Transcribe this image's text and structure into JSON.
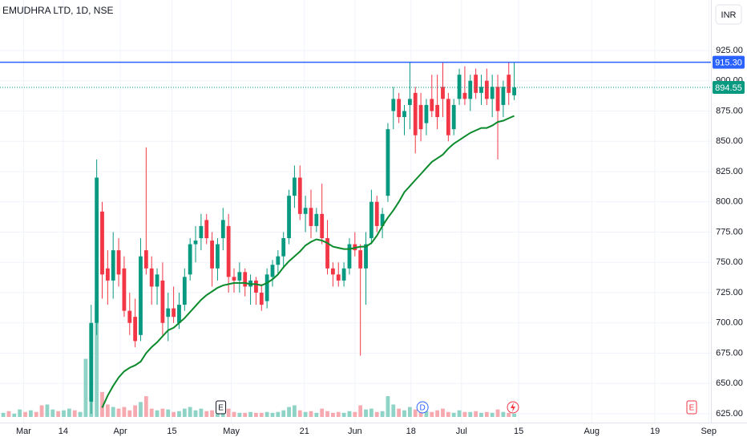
{
  "chart_data": {
    "type": "candlestick",
    "title": "EMUDHRA LTD, 1D, NSE",
    "currency": "INR",
    "up_color": "#089981",
    "down_color": "#f23645",
    "xlim": [
      -16.6,
      112.8
    ],
    "ylim": [
      617.7,
      966.7
    ],
    "xticks": [
      {
        "value": -12.3,
        "label": "Mar"
      },
      {
        "value": -5.1,
        "label": "14"
      },
      {
        "value": 5.3,
        "label": "Apr"
      },
      {
        "value": 14.7,
        "label": "15"
      },
      {
        "value": 25.5,
        "label": "May"
      },
      {
        "value": 38.8,
        "label": "21"
      },
      {
        "value": 48.0,
        "label": "Jun"
      },
      {
        "value": 58.2,
        "label": "18"
      },
      {
        "value": 67.4,
        "label": "Jul"
      },
      {
        "value": 77.8,
        "label": "15"
      },
      {
        "value": 91.1,
        "label": "Aug"
      },
      {
        "value": 102.6,
        "label": "19"
      },
      {
        "value": 112.4,
        "label": "Sep"
      }
    ],
    "yticks": [
      {
        "value": 625,
        "label": "625.00"
      },
      {
        "value": 650,
        "label": "650.00"
      },
      {
        "value": 675,
        "label": "675.00"
      },
      {
        "value": 700,
        "label": "700.00"
      },
      {
        "value": 725,
        "label": "725.00"
      },
      {
        "value": 750,
        "label": "750.00"
      },
      {
        "value": 775,
        "label": "775.00"
      },
      {
        "value": 800,
        "label": "800.00"
      },
      {
        "value": 825,
        "label": "825.00"
      },
      {
        "value": 850,
        "label": "850.00"
      },
      {
        "value": 875,
        "label": "875.00"
      },
      {
        "value": 900,
        "label": "900.00"
      },
      {
        "value": 925,
        "label": "925.00"
      }
    ],
    "x": [
      0,
      1,
      2,
      3,
      4,
      5,
      6,
      7,
      8,
      9,
      10,
      11,
      12,
      13,
      14,
      15,
      16,
      17,
      18,
      19,
      20,
      21,
      22,
      23,
      24,
      25,
      26,
      27,
      28,
      29,
      30,
      31,
      32,
      33,
      34,
      35,
      36,
      37,
      38,
      39,
      40,
      41,
      42,
      43,
      44,
      45,
      46,
      47,
      48,
      49,
      50,
      51,
      52,
      53,
      54,
      55,
      56,
      57,
      58,
      59,
      60,
      61,
      62,
      63,
      64,
      65,
      66,
      67,
      68,
      69,
      70,
      71,
      72,
      73,
      74,
      75,
      76,
      77
    ],
    "open": [
      635,
      700,
      792,
      745,
      735,
      760,
      745,
      710,
      705,
      690,
      760,
      745,
      730,
      735,
      705,
      712,
      700,
      715,
      740,
      765,
      770,
      785,
      768,
      745,
      770,
      780,
      738,
      735,
      742,
      730,
      735,
      725,
      718,
      738,
      748,
      755,
      770,
      805,
      820,
      790,
      795,
      780,
      790,
      770,
      745,
      740,
      735,
      745,
      765,
      760,
      745,
      770,
      800,
      780,
      805,
      875,
      885,
      870,
      880,
      890,
      880,
      865,
      885,
      880,
      895,
      885,
      860,
      885,
      890,
      885,
      905,
      890,
      900,
      885,
      895,
      880,
      905,
      888
    ],
    "high": [
      715,
      835,
      800,
      760,
      775,
      770,
      755,
      725,
      720,
      770,
      845,
      755,
      745,
      750,
      725,
      730,
      725,
      745,
      770,
      780,
      790,
      790,
      775,
      770,
      795,
      790,
      745,
      750,
      745,
      740,
      738,
      732,
      745,
      752,
      760,
      775,
      810,
      830,
      830,
      805,
      810,
      795,
      815,
      785,
      750,
      750,
      750,
      770,
      775,
      765,
      775,
      810,
      805,
      795,
      865,
      895,
      890,
      880,
      915,
      895,
      890,
      885,
      905,
      905,
      915,
      890,
      885,
      910,
      912,
      905,
      910,
      905,
      910,
      905,
      905,
      900,
      915,
      915
    ],
    "low": [
      625,
      690,
      720,
      715,
      720,
      730,
      705,
      690,
      680,
      685,
      740,
      715,
      715,
      690,
      685,
      700,
      695,
      710,
      735,
      750,
      760,
      765,
      730,
      735,
      760,
      725,
      725,
      725,
      722,
      715,
      715,
      710,
      712,
      730,
      740,
      745,
      765,
      795,
      785,
      775,
      770,
      775,
      765,
      740,
      730,
      730,
      730,
      740,
      755,
      673,
      715,
      765,
      775,
      770,
      800,
      860,
      865,
      855,
      860,
      840,
      850,
      855,
      870,
      860,
      870,
      850,
      855,
      880,
      880,
      875,
      885,
      880,
      880,
      870,
      835,
      870,
      880,
      884
    ],
    "close": [
      700,
      820,
      740,
      735,
      760,
      740,
      710,
      700,
      685,
      755,
      745,
      730,
      740,
      700,
      712,
      705,
      715,
      738,
      765,
      768,
      780,
      770,
      745,
      765,
      785,
      738,
      735,
      742,
      730,
      735,
      725,
      715,
      740,
      748,
      755,
      770,
      805,
      820,
      790,
      795,
      780,
      790,
      770,
      745,
      740,
      735,
      745,
      765,
      760,
      745,
      765,
      800,
      780,
      790,
      860,
      885,
      870,
      875,
      885,
      855,
      860,
      880,
      875,
      870,
      885,
      855,
      880,
      905,
      885,
      900,
      890,
      895,
      885,
      895,
      875,
      895,
      890,
      894.55
    ],
    "ma": {
      "color": "#0b8a2c",
      "values": [
        null,
        null,
        630,
        640,
        648,
        655,
        660,
        663,
        665,
        668,
        675,
        680,
        684,
        689,
        694,
        696,
        700,
        704,
        709,
        714,
        719,
        723,
        726,
        729,
        731,
        732,
        733,
        733,
        733,
        732,
        732,
        731,
        733,
        736,
        740,
        746,
        751,
        755,
        759,
        764,
        767,
        769,
        768,
        766,
        763,
        762,
        761,
        761,
        762,
        763,
        763,
        766,
        772,
        780,
        787,
        793,
        800,
        808,
        813,
        818,
        823,
        828,
        833,
        836,
        839,
        844,
        848,
        851,
        854,
        857,
        859,
        861,
        861,
        863,
        866,
        867,
        869,
        871
      ]
    },
    "volume": {
      "up_color": "#8fd3c6",
      "down_color": "#f7a9b0",
      "x": [
        -16,
        -15,
        -14,
        -13,
        -12,
        -11,
        -10,
        -9,
        -8,
        -7,
        -6,
        -5,
        -4,
        -3,
        -2,
        -1,
        0,
        1,
        2,
        3,
        4,
        5,
        6,
        7,
        8,
        9,
        10,
        11,
        12,
        13,
        14,
        15,
        16,
        17,
        18,
        19,
        20,
        21,
        22,
        23,
        24,
        25,
        26,
        27,
        28,
        29,
        30,
        31,
        32,
        33,
        34,
        35,
        36,
        37,
        38,
        39,
        40,
        41,
        42,
        43,
        44,
        45,
        46,
        47,
        48,
        49,
        50,
        51,
        52,
        53,
        54,
        55,
        56,
        57,
        58,
        59,
        60,
        61,
        62,
        63,
        64,
        65,
        66,
        67,
        68,
        69,
        70,
        71,
        72,
        73,
        74,
        75,
        76,
        77
      ],
      "values": [
        5,
        7,
        4,
        9,
        6,
        8,
        6,
        14,
        15,
        9,
        7,
        8,
        10,
        8,
        6,
        70,
        110,
        140,
        30,
        15,
        12,
        10,
        12,
        8,
        14,
        18,
        25,
        10,
        8,
        10,
        9,
        6,
        7,
        10,
        12,
        8,
        10,
        7,
        8,
        6,
        12,
        10,
        6,
        5,
        5,
        6,
        5,
        5,
        6,
        5,
        6,
        8,
        12,
        14,
        8,
        6,
        7,
        5,
        10,
        7,
        5,
        6,
        5,
        7,
        6,
        14,
        9,
        10,
        6,
        7,
        25,
        15,
        10,
        8,
        12,
        9,
        8,
        7,
        6,
        8,
        10,
        6,
        5,
        8,
        6,
        6,
        7,
        5,
        6,
        5,
        9,
        6,
        5,
        4
      ],
      "up": [
        true,
        false,
        true,
        true,
        false,
        true,
        false,
        false,
        true,
        true,
        false,
        true,
        true,
        false,
        true,
        true,
        true,
        true,
        false,
        false,
        true,
        false,
        false,
        false,
        false,
        true,
        false,
        false,
        true,
        false,
        true,
        false,
        true,
        true,
        true,
        true,
        true,
        false,
        false,
        true,
        true,
        false,
        false,
        true,
        false,
        true,
        false,
        false,
        true,
        true,
        true,
        true,
        true,
        true,
        false,
        true,
        false,
        true,
        false,
        false,
        false,
        false,
        true,
        true,
        false,
        false,
        true,
        true,
        false,
        true,
        true,
        true,
        false,
        true,
        true,
        false,
        false,
        true,
        false,
        false,
        false,
        false,
        true,
        true,
        false,
        true,
        false,
        true,
        false,
        true,
        false,
        true,
        false,
        true
      ]
    },
    "price_lines": [
      {
        "value": 915.3,
        "label": "915.30",
        "color": "#2962ff",
        "style": "solid"
      },
      {
        "value": 894.55,
        "label": "894.55",
        "color": "#089981",
        "style": "dotted"
      }
    ],
    "events": [
      {
        "x": 23.6,
        "label": "E",
        "color": "#131722"
      },
      {
        "x": 60.3,
        "label": "D",
        "color": "#2962ff"
      },
      {
        "x": 109.3,
        "label": "E",
        "color": "#f23645"
      }
    ]
  }
}
